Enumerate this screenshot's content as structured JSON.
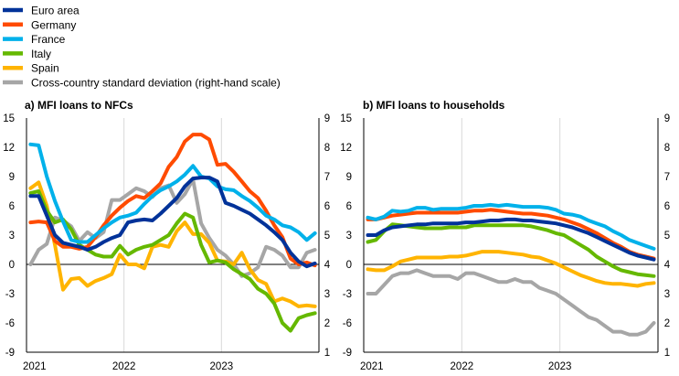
{
  "legend": [
    {
      "label": "Euro area",
      "color": "#003299"
    },
    {
      "label": "Germany",
      "color": "#ff4b00"
    },
    {
      "label": "France",
      "color": "#00b1ea"
    },
    {
      "label": "Italy",
      "color": "#65b800"
    },
    {
      "label": "Spain",
      "color": "#ffb400"
    },
    {
      "label": "Cross-country standard deviation (right-hand scale)",
      "color": "#a6a6a6"
    }
  ],
  "chart_data": [
    {
      "type": "line",
      "title": "a) MFI loans to NFCs",
      "x_start": "2021-01",
      "x_end": "2023-12",
      "x_tick_labels": [
        "2021",
        "2022",
        "2023"
      ],
      "ylim": [
        -9,
        15
      ],
      "yticks": [
        "15",
        "12",
        "9",
        "6",
        "3",
        "0",
        "-3",
        "-6",
        "-9"
      ],
      "y2lim": [
        1,
        9
      ],
      "y2ticks": [
        "9",
        "8",
        "7",
        "6",
        "5",
        "4",
        "3",
        "2",
        "1"
      ],
      "series": [
        {
          "name": "Euro area",
          "axis": "left",
          "values": [
            7.0,
            7.0,
            5.0,
            3.0,
            2.2,
            2.0,
            1.8,
            1.5,
            1.8,
            2.3,
            2.7,
            3.0,
            4.3,
            4.5,
            4.6,
            4.5,
            5.2,
            6.0,
            6.8,
            8.0,
            8.8,
            8.9,
            8.9,
            8.5,
            6.3,
            6.0,
            5.6,
            5.2,
            4.6,
            4.0,
            3.3,
            2.5,
            1.2,
            0.3,
            -0.2,
            0.1
          ]
        },
        {
          "name": "Germany",
          "axis": "left",
          "values": [
            4.3,
            4.4,
            4.3,
            2.4,
            1.8,
            1.8,
            1.6,
            1.8,
            2.8,
            4.0,
            5.0,
            5.8,
            6.5,
            7.0,
            6.8,
            7.5,
            8.3,
            10.0,
            11.0,
            12.6,
            13.3,
            13.3,
            12.8,
            10.2,
            10.3,
            9.5,
            8.5,
            7.5,
            6.8,
            5.5,
            4.0,
            2.8,
            0.6,
            0.0,
            0.2,
            -0.1
          ]
        },
        {
          "name": "France",
          "axis": "left",
          "values": [
            12.3,
            12.2,
            9.0,
            6.5,
            4.4,
            2.5,
            2.3,
            2.3,
            3.0,
            3.7,
            4.3,
            4.8,
            5.0,
            5.3,
            6.2,
            7.0,
            7.6,
            8.0,
            8.5,
            9.2,
            10.1,
            9.0,
            8.8,
            8.0,
            7.7,
            7.6,
            7.0,
            6.5,
            5.8,
            5.0,
            4.6,
            4.0,
            3.8,
            3.3,
            2.5,
            3.2
          ]
        },
        {
          "name": "Italy",
          "axis": "left",
          "values": [
            7.3,
            7.5,
            5.5,
            4.3,
            4.6,
            3.6,
            2.0,
            1.5,
            1.0,
            0.8,
            0.8,
            1.9,
            1.0,
            1.5,
            1.8,
            2.0,
            2.5,
            3.0,
            4.2,
            5.2,
            4.8,
            2.0,
            0.2,
            0.4,
            0.2,
            -0.5,
            -1.0,
            -1.5,
            -2.5,
            -3.0,
            -4.0,
            -6.0,
            -6.8,
            -5.5,
            -5.2,
            -5.0
          ]
        },
        {
          "name": "Spain",
          "axis": "left",
          "values": [
            7.8,
            8.4,
            6.0,
            2.0,
            -2.6,
            -1.5,
            -1.4,
            -2.2,
            -1.7,
            -1.4,
            -1.0,
            1.0,
            0.0,
            0.0,
            -0.4,
            1.8,
            2.0,
            1.8,
            3.4,
            4.3,
            3.1,
            3.1,
            2.2,
            0.4,
            0.3,
            0.0,
            1.2,
            -0.5,
            -1.6,
            -2.0,
            -3.8,
            -3.5,
            -3.8,
            -4.3,
            -4.2,
            -4.3
          ]
        },
        {
          "name": "Cross-country standard deviation (right-hand scale)",
          "axis": "right",
          "values": [
            4.0,
            4.5,
            4.7,
            5.6,
            5.5,
            5.3,
            4.8,
            5.1,
            4.9,
            5.1,
            6.2,
            6.2,
            6.4,
            6.6,
            6.5,
            6.3,
            6.6,
            6.7,
            6.1,
            6.4,
            6.9,
            5.4,
            4.9,
            4.5,
            4.3,
            4.0,
            3.6,
            3.7,
            3.9,
            4.6,
            4.5,
            4.3,
            3.9,
            3.9,
            4.4,
            4.5
          ]
        }
      ]
    },
    {
      "type": "line",
      "title": "b) MFI loans to households",
      "x_start": "2021-01",
      "x_end": "2023-12",
      "x_tick_labels": [
        "2021",
        "2022",
        "2023"
      ],
      "ylim": [
        -9,
        15
      ],
      "yticks": [
        "15",
        "12",
        "9",
        "6",
        "3",
        "0",
        "-3",
        "-6",
        "-9"
      ],
      "y2lim": [
        1,
        9
      ],
      "y2ticks": [
        "9",
        "8",
        "7",
        "6",
        "5",
        "4",
        "3",
        "2",
        "1"
      ],
      "series": [
        {
          "name": "Euro area",
          "axis": "left",
          "values": [
            3.0,
            3.0,
            3.5,
            3.8,
            3.9,
            4.0,
            4.1,
            4.1,
            4.2,
            4.2,
            4.2,
            4.2,
            4.3,
            4.3,
            4.4,
            4.5,
            4.5,
            4.6,
            4.6,
            4.5,
            4.5,
            4.4,
            4.3,
            4.2,
            4.0,
            3.8,
            3.5,
            3.2,
            2.8,
            2.4,
            2.0,
            1.6,
            1.2,
            0.9,
            0.7,
            0.5
          ]
        },
        {
          "name": "Germany",
          "axis": "left",
          "values": [
            4.6,
            4.6,
            4.8,
            5.0,
            5.1,
            5.2,
            5.3,
            5.3,
            5.3,
            5.3,
            5.3,
            5.3,
            5.4,
            5.5,
            5.5,
            5.6,
            5.5,
            5.4,
            5.3,
            5.2,
            5.2,
            5.1,
            5.0,
            4.8,
            4.6,
            4.3,
            4.0,
            3.6,
            3.2,
            2.7,
            2.2,
            1.8,
            1.3,
            1.0,
            0.8,
            0.6
          ]
        },
        {
          "name": "France",
          "axis": "left",
          "values": [
            4.8,
            4.6,
            4.9,
            5.5,
            5.4,
            5.5,
            5.8,
            5.8,
            5.6,
            5.7,
            5.7,
            5.7,
            5.8,
            6.0,
            6.0,
            6.1,
            6.0,
            6.1,
            6.0,
            5.9,
            5.9,
            5.9,
            5.8,
            5.6,
            5.2,
            5.1,
            4.9,
            4.5,
            4.2,
            3.9,
            3.4,
            3.0,
            2.5,
            2.2,
            1.9,
            1.6
          ]
        },
        {
          "name": "Italy",
          "axis": "left",
          "values": [
            2.3,
            2.5,
            3.4,
            4.1,
            4.0,
            3.9,
            3.8,
            3.7,
            3.7,
            3.7,
            3.8,
            3.8,
            3.8,
            4.0,
            4.0,
            4.0,
            4.0,
            4.0,
            4.0,
            4.0,
            3.9,
            3.7,
            3.5,
            3.2,
            3.0,
            2.5,
            2.0,
            1.5,
            0.8,
            0.3,
            -0.2,
            -0.6,
            -0.8,
            -1.0,
            -1.1,
            -1.2
          ]
        },
        {
          "name": "Spain",
          "axis": "left",
          "values": [
            -0.5,
            -0.6,
            -0.6,
            -0.2,
            0.3,
            0.5,
            0.7,
            0.7,
            0.7,
            0.7,
            0.8,
            0.8,
            0.9,
            1.1,
            1.3,
            1.3,
            1.3,
            1.2,
            1.1,
            1.0,
            0.8,
            0.7,
            0.4,
            0.1,
            -0.3,
            -0.7,
            -1.1,
            -1.4,
            -1.7,
            -1.9,
            -2.0,
            -2.0,
            -2.1,
            -2.2,
            -2.0,
            -1.9
          ]
        },
        {
          "name": "Cross-country standard deviation (right-hand scale)",
          "axis": "right",
          "values": [
            3.0,
            3.0,
            3.3,
            3.6,
            3.7,
            3.7,
            3.8,
            3.7,
            3.6,
            3.6,
            3.6,
            3.5,
            3.7,
            3.7,
            3.6,
            3.5,
            3.4,
            3.4,
            3.5,
            3.4,
            3.4,
            3.2,
            3.1,
            3.0,
            2.8,
            2.6,
            2.4,
            2.2,
            2.1,
            1.9,
            1.7,
            1.7,
            1.6,
            1.6,
            1.7,
            2.0
          ]
        }
      ]
    }
  ]
}
